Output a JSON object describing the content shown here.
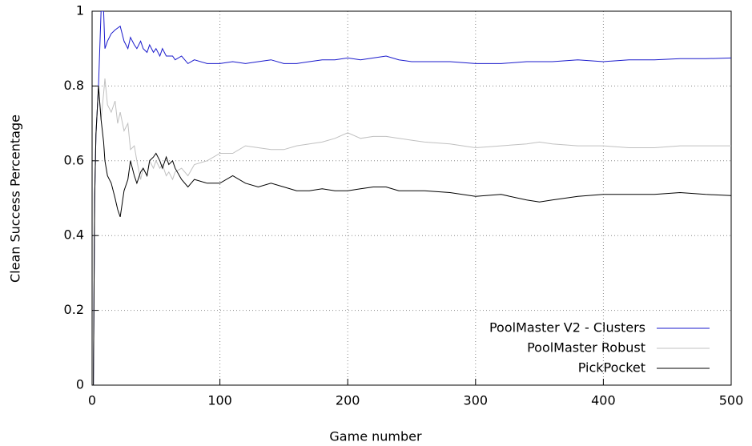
{
  "chart_data": {
    "type": "line",
    "x_label": "Game number",
    "y_label": "Clean Success Percentage",
    "x": [
      1,
      2,
      3,
      5,
      7,
      9,
      10,
      12,
      15,
      18,
      20,
      22,
      25,
      28,
      30,
      33,
      35,
      38,
      40,
      43,
      45,
      48,
      50,
      53,
      55,
      58,
      60,
      63,
      65,
      70,
      75,
      80,
      90,
      100,
      110,
      120,
      130,
      140,
      150,
      160,
      170,
      180,
      190,
      200,
      210,
      220,
      230,
      240,
      250,
      260,
      280,
      300,
      320,
      340,
      350,
      360,
      380,
      400,
      420,
      440,
      460,
      480,
      500
    ],
    "series": [
      {
        "name": "PoolMaster V2 - Clusters",
        "color": "#1a1acc",
        "values": [
          0,
          0.5,
          0.67,
          0.8,
          1.0,
          1.0,
          0.9,
          0.92,
          0.94,
          0.95,
          0.955,
          0.96,
          0.92,
          0.9,
          0.93,
          0.91,
          0.9,
          0.92,
          0.9,
          0.89,
          0.91,
          0.89,
          0.9,
          0.88,
          0.9,
          0.88,
          0.88,
          0.88,
          0.87,
          0.88,
          0.86,
          0.87,
          0.86,
          0.86,
          0.865,
          0.86,
          0.865,
          0.87,
          0.86,
          0.86,
          0.865,
          0.87,
          0.87,
          0.875,
          0.87,
          0.875,
          0.88,
          0.87,
          0.865,
          0.865,
          0.865,
          0.86,
          0.86,
          0.865,
          0.865,
          0.865,
          0.87,
          0.865,
          0.87,
          0.87,
          0.873,
          0.873,
          0.875
        ]
      },
      {
        "name": "PoolMaster Robust",
        "color": "#c0c0c0",
        "values": [
          0,
          0.5,
          0.67,
          0.8,
          0.71,
          0.78,
          0.82,
          0.75,
          0.73,
          0.76,
          0.7,
          0.73,
          0.68,
          0.7,
          0.63,
          0.64,
          0.6,
          0.55,
          0.58,
          0.56,
          0.6,
          0.58,
          0.6,
          0.58,
          0.59,
          0.56,
          0.57,
          0.55,
          0.57,
          0.58,
          0.56,
          0.59,
          0.6,
          0.62,
          0.62,
          0.64,
          0.635,
          0.63,
          0.63,
          0.64,
          0.645,
          0.65,
          0.66,
          0.675,
          0.66,
          0.665,
          0.665,
          0.66,
          0.655,
          0.65,
          0.645,
          0.635,
          0.64,
          0.645,
          0.65,
          0.645,
          0.64,
          0.64,
          0.635,
          0.635,
          0.64,
          0.64,
          0.64
        ]
      },
      {
        "name": "PickPocket",
        "color": "#000000",
        "values": [
          0,
          0.5,
          0.67,
          0.8,
          0.71,
          0.65,
          0.6,
          0.56,
          0.54,
          0.5,
          0.47,
          0.45,
          0.52,
          0.55,
          0.6,
          0.56,
          0.54,
          0.57,
          0.58,
          0.56,
          0.6,
          0.61,
          0.62,
          0.6,
          0.58,
          0.61,
          0.59,
          0.6,
          0.58,
          0.55,
          0.53,
          0.55,
          0.54,
          0.54,
          0.56,
          0.54,
          0.53,
          0.54,
          0.53,
          0.52,
          0.52,
          0.525,
          0.52,
          0.52,
          0.525,
          0.53,
          0.53,
          0.52,
          0.52,
          0.52,
          0.515,
          0.505,
          0.51,
          0.495,
          0.49,
          0.495,
          0.505,
          0.51,
          0.51,
          0.51,
          0.515,
          0.51,
          0.507
        ]
      }
    ],
    "xlim": [
      0,
      500
    ],
    "xticks": [
      0,
      100,
      200,
      300,
      400,
      500
    ],
    "ylim": [
      0,
      1
    ],
    "yticks": [
      0,
      0.2,
      0.4,
      0.6,
      0.8,
      1
    ],
    "grid": true,
    "legend": "lower right"
  }
}
